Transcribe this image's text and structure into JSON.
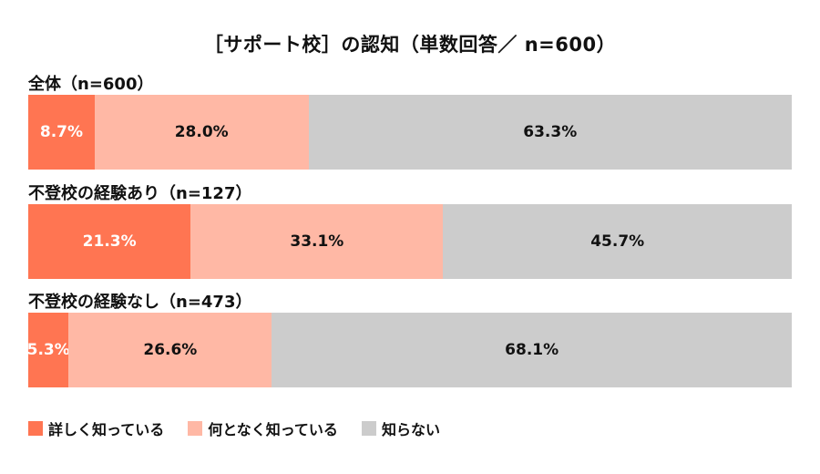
{
  "chart_data": {
    "type": "bar",
    "orientation": "horizontal",
    "stacked": true,
    "normalized_100": true,
    "title": "［サポート校］の認知（単数回答／ n=600）",
    "categories": [
      "全体（n=600）",
      "不登校の経験あり（n=127）",
      "不登校の経験なし（n=473）"
    ],
    "series": [
      {
        "name": "詳しく知っている",
        "color": "#ff7552",
        "values": [
          8.7,
          21.3,
          5.3
        ]
      },
      {
        "name": "何となく知っている",
        "color": "#ffb8a5",
        "values": [
          28.0,
          33.1,
          26.6
        ]
      },
      {
        "name": "知らない",
        "color": "#cccccc",
        "values": [
          63.3,
          45.7,
          68.1
        ]
      }
    ],
    "xlabel": "",
    "ylabel": "",
    "xlim": [
      0,
      100
    ],
    "grid": false,
    "legend_position": "bottom-left",
    "data_labels": true
  },
  "title": "［サポート校］の認知（単数回答／ n=600）",
  "groups": [
    {
      "label": "全体（n=600）",
      "segments": [
        "8.7%",
        "28.0%",
        "63.3%"
      ]
    },
    {
      "label": "不登校の経験あり（n=127）",
      "segments": [
        "21.3%",
        "33.1%",
        "45.7%"
      ]
    },
    {
      "label": "不登校の経験なし（n=473）",
      "segments": [
        "5.3%",
        "26.6%",
        "68.1%"
      ]
    }
  ],
  "legend": [
    {
      "label": "詳しく知っている",
      "color": "#ff7552"
    },
    {
      "label": "何となく知っている",
      "color": "#ffb8a5"
    },
    {
      "label": "知らない",
      "color": "#cccccc"
    }
  ]
}
